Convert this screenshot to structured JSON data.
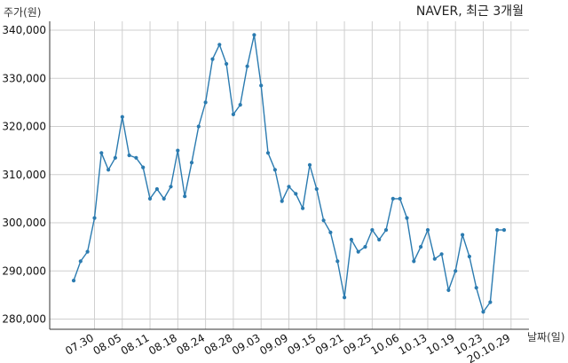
{
  "chart_data": {
    "type": "line",
    "title": "NAVER, 최근 3개월",
    "ylabel": "주가(원)",
    "xlabel": "날짜(일)",
    "ylim": [
      278000,
      342000
    ],
    "y_ticks": [
      280000,
      290000,
      300000,
      310000,
      320000,
      330000,
      340000
    ],
    "y_tick_labels": [
      "280,000",
      "290,000",
      "300,000",
      "310,000",
      "320,000",
      "330,000",
      "340,000"
    ],
    "x_tick_labels": [
      "07.30",
      "08.05",
      "08.11",
      "08.18",
      "08.24",
      "08.28",
      "09.03",
      "09.09",
      "09.15",
      "09.21",
      "09.25",
      "10.06",
      "10.13",
      "10.19",
      "10.23",
      "20.10.29"
    ],
    "x_tick_index": [
      3,
      7,
      11,
      15,
      19,
      23,
      27,
      31,
      35,
      39,
      43,
      47,
      51,
      55,
      59,
      63
    ],
    "grid": true,
    "line_color": "#2b7bb0",
    "series": [
      {
        "values": [
          288000,
          292000,
          294000,
          301000,
          314500,
          311000,
          313500,
          322000,
          314000,
          313500,
          311500,
          305000,
          307000,
          305000,
          307500,
          315000,
          305500,
          312500,
          320000,
          325000,
          334000,
          337000,
          333000,
          322500,
          324500,
          332500,
          339000,
          328500,
          314500,
          311000,
          304500,
          307500,
          306000,
          303000,
          312000,
          307000,
          300500,
          298000,
          292000,
          284500,
          296500,
          294000,
          295000,
          298500,
          296500,
          298500,
          305000,
          305000,
          301000,
          292000,
          295000,
          298500,
          292500,
          293500,
          286000,
          290000,
          297500,
          293000,
          286500,
          281500,
          283500,
          298500,
          298500
        ]
      }
    ]
  }
}
